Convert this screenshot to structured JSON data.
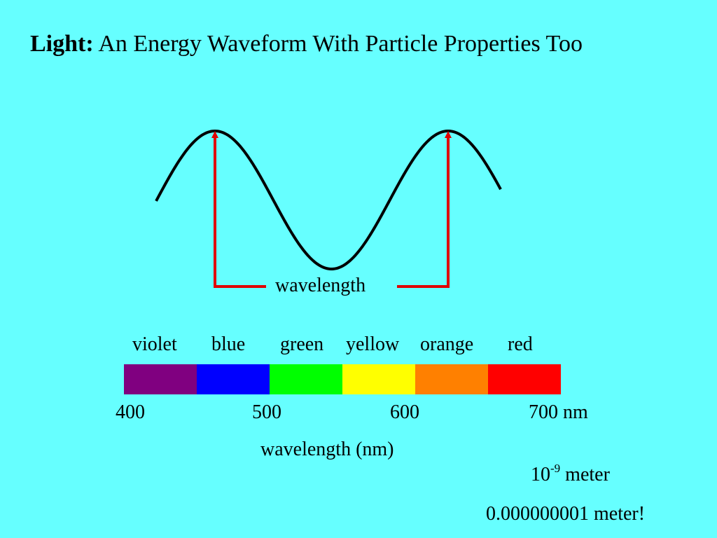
{
  "title": {
    "bold": "Light:",
    "rest": "An Energy Waveform With Particle Properties Too"
  },
  "wave": {
    "label": "wavelength",
    "line_color": "#000000",
    "arrow_color": "#E00000"
  },
  "spectrum": {
    "bands": [
      {
        "name": "violet",
        "color": "#800080"
      },
      {
        "name": "blue",
        "color": "#0000FF"
      },
      {
        "name": "green",
        "color": "#00FF00"
      },
      {
        "name": "yellow",
        "color": "#FFFF00"
      },
      {
        "name": "orange",
        "color": "#FF8000"
      },
      {
        "name": "red",
        "color": "#FF0000"
      }
    ],
    "ticks": [
      "400",
      "500",
      "600",
      "700 nm"
    ],
    "axis_label": "wavelength (nm)"
  },
  "unit_note": {
    "base": "10",
    "exponent": "-9",
    "unit": "meter"
  },
  "decimal_note": "0.000000001 meter!",
  "background": "#66FFFF"
}
